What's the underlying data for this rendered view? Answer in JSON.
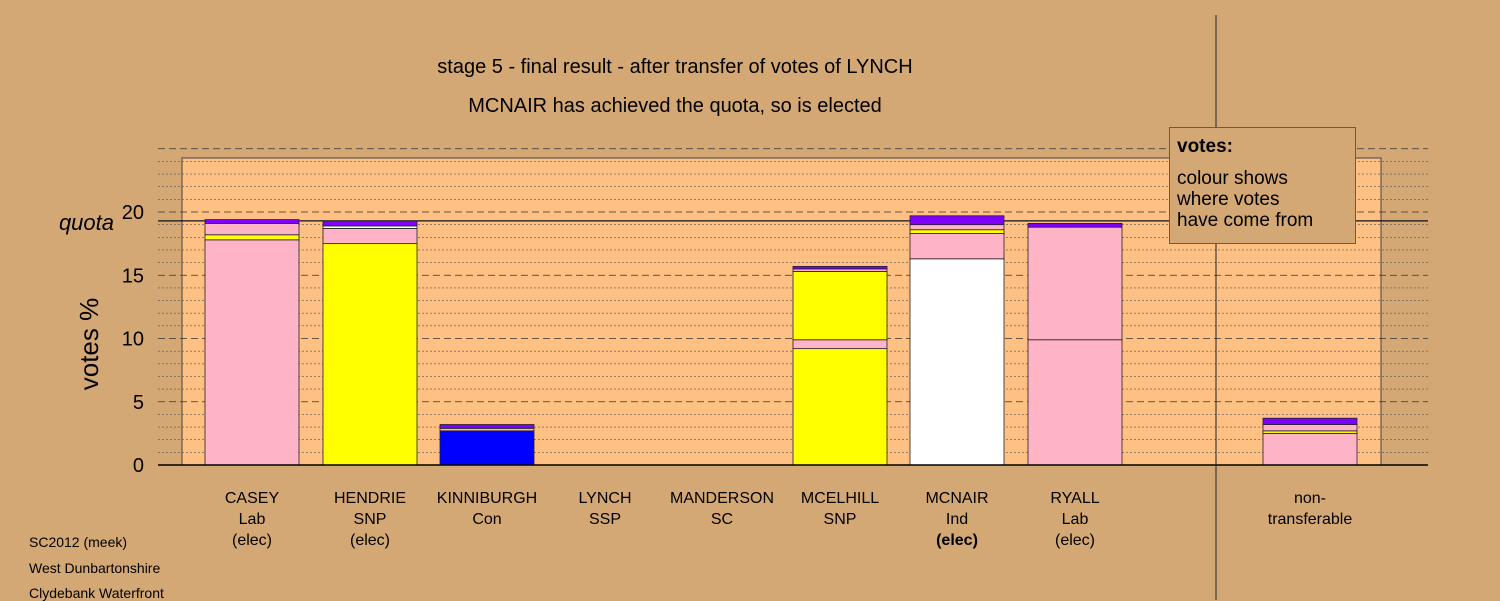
{
  "chart_data": {
    "type": "bar",
    "stacked": true,
    "title": "stage 5 - final result - after transfer of votes of LYNCH",
    "subtitle": "MCNAIR has achieved the quota, so is elected",
    "ylabel": "votes %",
    "ylim": [
      0,
      25
    ],
    "yticks": [
      "0",
      "5",
      "10",
      "15",
      "20"
    ],
    "quota_label": "quota",
    "quota_value": 19.3,
    "grid": true,
    "candidates": [
      {
        "name": "CASEY",
        "party": "Lab",
        "status": "(elec)",
        "status_bold": false,
        "segments": [
          {
            "color": "#ffb3c6",
            "value": 17.8
          },
          {
            "color": "#ffff00",
            "value": 0.4
          },
          {
            "color": "#ffb3c6",
            "value": 0.9
          },
          {
            "color": "#7f00ff",
            "value": 0.3
          }
        ]
      },
      {
        "name": "HENDRIE",
        "party": "SNP",
        "status": "(elec)",
        "status_bold": false,
        "segments": [
          {
            "color": "#ffff00",
            "value": 17.5
          },
          {
            "color": "#ffb3c6",
            "value": 1.2
          },
          {
            "color": "#ffffff",
            "value": 0.2
          },
          {
            "color": "#7f00ff",
            "value": 0.4
          }
        ]
      },
      {
        "name": "KINNIBURGH",
        "party": "Con",
        "status": "",
        "status_bold": false,
        "segments": [
          {
            "color": "#0000ff",
            "value": 2.7
          },
          {
            "color": "#ffb3c6",
            "value": 0.2
          },
          {
            "color": "#7f00ff",
            "value": 0.3
          }
        ]
      },
      {
        "name": "LYNCH",
        "party": "SSP",
        "status": "",
        "status_bold": false,
        "segments": []
      },
      {
        "name": "MANDERSON",
        "party": "SC",
        "status": "",
        "status_bold": false,
        "segments": []
      },
      {
        "name": "MCELHILL",
        "party": "SNP",
        "status": "",
        "status_bold": false,
        "segments": [
          {
            "color": "#ffff00",
            "value": 9.2
          },
          {
            "color": "#ffb3c6",
            "value": 0.7
          },
          {
            "color": "#ffff00",
            "value": 5.4
          },
          {
            "color": "#ffb3c6",
            "value": 0.2
          },
          {
            "color": "#7f00ff",
            "value": 0.2
          }
        ]
      },
      {
        "name": "MCNAIR",
        "party": "Ind",
        "status": "(elec)",
        "status_bold": true,
        "segments": [
          {
            "color": "#ffffff",
            "value": 16.3
          },
          {
            "color": "#ffb3c6",
            "value": 2.0
          },
          {
            "color": "#ffff00",
            "value": 0.3
          },
          {
            "color": "#ffb3c6",
            "value": 0.4
          },
          {
            "color": "#7f00ff",
            "value": 0.7
          }
        ]
      },
      {
        "name": "RYALL",
        "party": "Lab",
        "status": "(elec)",
        "status_bold": false,
        "segments": [
          {
            "color": "#ffb3c6",
            "value": 9.9
          },
          {
            "color": "#ffb3c6",
            "value": 8.9
          },
          {
            "color": "#7f00ff",
            "value": 0.3
          }
        ]
      },
      {
        "name": "non-",
        "party": "transferable",
        "status": "",
        "status_bold": false,
        "separate": true,
        "segments": [
          {
            "color": "#ffb3c6",
            "value": 2.5
          },
          {
            "color": "#ffff00",
            "value": 0.2
          },
          {
            "color": "#ffb3c6",
            "value": 0.5
          },
          {
            "color": "#7f00ff",
            "value": 0.5
          }
        ]
      }
    ]
  },
  "legend": {
    "title": "votes:",
    "line1": "colour shows",
    "line2": "where votes",
    "line3": "have come from"
  },
  "footer": {
    "line1": "SC2012 (meek)",
    "line2": "West Dunbartonshire",
    "line3": "Clydebank Waterfront"
  }
}
